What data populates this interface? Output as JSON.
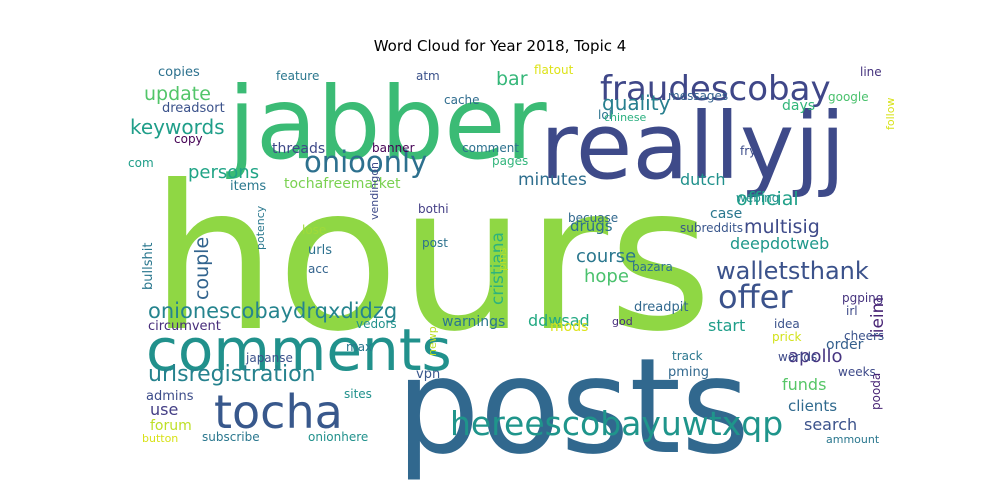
{
  "chart_data": {
    "type": "wordcloud",
    "title": "Word Cloud for Year 2018, Topic 4",
    "words": [
      {
        "text": "hours",
        "weight": 1.0,
        "color": "#8fd744"
      },
      {
        "text": "posts",
        "weight": 0.92,
        "color": "#31688e"
      },
      {
        "text": "jabber",
        "weight": 0.74,
        "color": "#3bbb75"
      },
      {
        "text": "reallyjj",
        "weight": 0.7,
        "color": "#3e4a89"
      },
      {
        "text": "comments",
        "weight": 0.52,
        "color": "#21918c"
      },
      {
        "text": "tocha",
        "weight": 0.45,
        "color": "#38588c"
      },
      {
        "text": "fraudescobay",
        "weight": 0.32,
        "color": "#3f4788"
      },
      {
        "text": "hereescobayuwtxqp",
        "weight": 0.31,
        "color": "#1f958b"
      },
      {
        "text": "offer",
        "weight": 0.3,
        "color": "#3b528b"
      },
      {
        "text": "onioonly",
        "weight": 0.28,
        "color": "#2d708e"
      },
      {
        "text": "walletsthank",
        "weight": 0.24,
        "color": "#3b528b"
      },
      {
        "text": "onionescobaydrqxdidzg",
        "weight": 0.22,
        "color": "#25848e"
      },
      {
        "text": "urlsregistration",
        "weight": 0.22,
        "color": "#26828e"
      },
      {
        "text": "keywords",
        "weight": 0.2,
        "color": "#1f9e89"
      },
      {
        "text": "quality",
        "weight": 0.19,
        "color": "#277f8e"
      },
      {
        "text": "update",
        "weight": 0.19,
        "color": "#52c569"
      },
      {
        "text": "bar",
        "weight": 0.19,
        "color": "#35b779"
      },
      {
        "text": "couple",
        "weight": 0.19,
        "color": "#32648e"
      },
      {
        "text": "official",
        "weight": 0.18,
        "color": "#1fa088"
      },
      {
        "text": "multisig",
        "weight": 0.18,
        "color": "#3e4a89"
      },
      {
        "text": "course",
        "weight": 0.17,
        "color": "#2a778e"
      },
      {
        "text": "hope",
        "weight": 0.17,
        "color": "#4ac16d"
      },
      {
        "text": "persons",
        "weight": 0.17,
        "color": "#20a486"
      },
      {
        "text": "apollo",
        "weight": 0.17,
        "color": "#463480"
      },
      {
        "text": "cristiana",
        "weight": 0.16,
        "color": "#2eb37c"
      },
      {
        "text": "minutes",
        "weight": 0.16,
        "color": "#2e6e8e"
      },
      {
        "text": "lieim",
        "weight": 0.16,
        "color": "#482475"
      },
      {
        "text": "deepdotweb",
        "weight": 0.15,
        "color": "#1f988b"
      },
      {
        "text": "funds",
        "weight": 0.15,
        "color": "#56c667"
      },
      {
        "text": "dutch",
        "weight": 0.15,
        "color": "#21918c"
      },
      {
        "text": "ddwsad",
        "weight": 0.15,
        "color": "#23a983"
      },
      {
        "text": "start",
        "weight": 0.14,
        "color": "#1f9e89"
      },
      {
        "text": "drugs",
        "weight": 0.14,
        "color": "#2c728e"
      },
      {
        "text": "search",
        "weight": 0.14,
        "color": "#3b528b"
      },
      {
        "text": "clients",
        "weight": 0.14,
        "color": "#306a8e"
      },
      {
        "text": "use",
        "weight": 0.14,
        "color": "#433e85"
      },
      {
        "text": "warnings",
        "weight": 0.13,
        "color": "#2a778e"
      },
      {
        "text": "tochafreemarket",
        "weight": 0.12,
        "color": "#7ad151"
      },
      {
        "text": "days",
        "weight": 0.12,
        "color": "#32b67a"
      },
      {
        "text": "bullshit",
        "weight": 0.11,
        "color": "#2a778e"
      },
      {
        "text": "threads",
        "weight": 0.11,
        "color": "#3e4989"
      },
      {
        "text": "case",
        "weight": 0.11,
        "color": "#2a778e"
      },
      {
        "text": "order",
        "weight": 0.11,
        "color": "#35608d"
      },
      {
        "text": "mods",
        "weight": 0.11,
        "color": "#dde318"
      },
      {
        "text": "forum",
        "weight": 0.11,
        "color": "#bddf26"
      },
      {
        "text": "admins",
        "weight": 0.11,
        "color": "#3d4d8a"
      },
      {
        "text": "items",
        "weight": 0.1,
        "color": "#2a788e"
      },
      {
        "text": "circumvent",
        "weight": 0.1,
        "color": "#472d7b"
      },
      {
        "text": "vpn",
        "weight": 0.1,
        "color": "#39568c"
      },
      {
        "text": "copies",
        "weight": 0.09,
        "color": "#2c718e"
      },
      {
        "text": "dreadsort",
        "weight": 0.09,
        "color": "#3b528b"
      },
      {
        "text": "cache",
        "weight": 0.09,
        "color": "#2f6c8e"
      },
      {
        "text": "feature",
        "weight": 0.09,
        "color": "#2a778e"
      },
      {
        "text": "comment",
        "weight": 0.09,
        "color": "#2c718e"
      },
      {
        "text": "pages",
        "weight": 0.08,
        "color": "#31b57b"
      },
      {
        "text": "banner",
        "weight": 0.08,
        "color": "#440154"
      },
      {
        "text": "messages",
        "weight": 0.08,
        "color": "#34618d"
      },
      {
        "text": "google",
        "weight": 0.08,
        "color": "#4ac16d"
      },
      {
        "text": "lol",
        "weight": 0.08,
        "color": "#2c728e"
      },
      {
        "text": "chinese",
        "weight": 0.07,
        "color": "#29af7f"
      },
      {
        "text": "flatout",
        "weight": 0.07,
        "color": "#dde318"
      },
      {
        "text": "atm",
        "weight": 0.07,
        "color": "#3b528b"
      },
      {
        "text": "line",
        "weight": 0.07,
        "color": "#46337e"
      },
      {
        "text": "fry",
        "weight": 0.07,
        "color": "#3d4d8a"
      },
      {
        "text": "follow",
        "weight": 0.07,
        "color": "#d8e219"
      },
      {
        "text": "copy",
        "weight": 0.07,
        "color": "#440154"
      },
      {
        "text": "com",
        "weight": 0.07,
        "color": "#1f9e89"
      },
      {
        "text": "webing",
        "weight": 0.07,
        "color": "#21918c"
      },
      {
        "text": "becuase",
        "weight": 0.07,
        "color": "#31688e"
      },
      {
        "text": "subreddits",
        "weight": 0.07,
        "color": "#39568c"
      },
      {
        "text": "bothi",
        "weight": 0.07,
        "color": "#433e85"
      },
      {
        "text": "vendingon",
        "weight": 0.07,
        "color": "#3e4a89"
      },
      {
        "text": "lose",
        "weight": 0.07,
        "color": "#9fda3a"
      },
      {
        "text": "urls",
        "weight": 0.08,
        "color": "#2c718e"
      },
      {
        "text": "acc",
        "weight": 0.07,
        "color": "#33638d"
      },
      {
        "text": "post",
        "weight": 0.07,
        "color": "#2c728e"
      },
      {
        "text": "potency",
        "weight": 0.07,
        "color": "#2a788e"
      },
      {
        "text": "pms",
        "weight": 0.06,
        "color": "#b8de29"
      },
      {
        "text": "bazara",
        "weight": 0.07,
        "color": "#2c718e"
      },
      {
        "text": "irl",
        "weight": 0.06,
        "color": "#3e4a89"
      },
      {
        "text": "pgping",
        "weight": 0.07,
        "color": "#46337e"
      },
      {
        "text": "dreadpit",
        "weight": 0.07,
        "color": "#31688e"
      },
      {
        "text": "god",
        "weight": 0.06,
        "color": "#472d7b"
      },
      {
        "text": "newp",
        "weight": 0.06,
        "color": "#bddf26"
      },
      {
        "text": "idea",
        "weight": 0.07,
        "color": "#3b528b"
      },
      {
        "text": "prick",
        "weight": 0.07,
        "color": "#d2e21b"
      },
      {
        "text": "cheers",
        "weight": 0.07,
        "color": "#3b528b"
      },
      {
        "text": "vedors",
        "weight": 0.07,
        "color": "#21918c"
      },
      {
        "text": "max",
        "weight": 0.07,
        "color": "#2a778e"
      },
      {
        "text": "japanse",
        "weight": 0.07,
        "color": "#3b528b"
      },
      {
        "text": "sites",
        "weight": 0.07,
        "color": "#21918c"
      },
      {
        "text": "track",
        "weight": 0.07,
        "color": "#2a778e"
      },
      {
        "text": "worlds",
        "weight": 0.07,
        "color": "#3e4a89"
      },
      {
        "text": "weeks",
        "weight": 0.07,
        "color": "#3e4a89"
      },
      {
        "text": "pming",
        "weight": 0.07,
        "color": "#31688e"
      },
      {
        "text": "pooda",
        "weight": 0.07,
        "color": "#482475"
      },
      {
        "text": "ammount",
        "weight": 0.06,
        "color": "#2a778e"
      },
      {
        "text": "button",
        "weight": 0.06,
        "color": "#d8e219"
      },
      {
        "text": "subscribe",
        "weight": 0.07,
        "color": "#2a778e"
      },
      {
        "text": "onionhere",
        "weight": 0.07,
        "color": "#21918c"
      }
    ]
  }
}
